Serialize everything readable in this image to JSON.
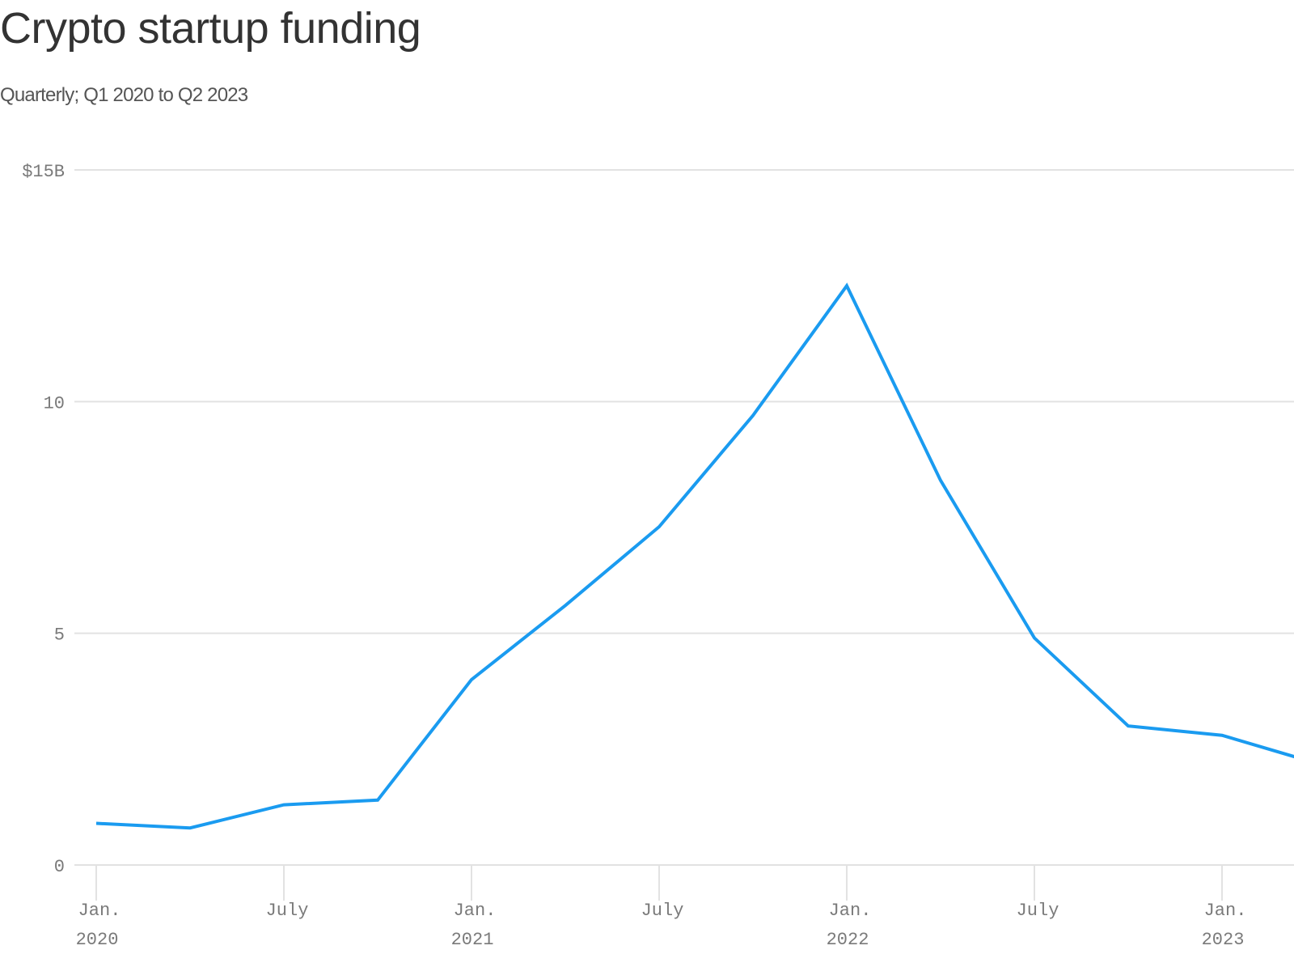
{
  "header": {
    "title": "Crypto startup funding",
    "subtitle": "Quarterly; Q1 2020 to Q2 2023"
  },
  "colors": {
    "line": "#1a9bf0",
    "grid": "#e2e2e2",
    "axis_text": "#7a7a7a",
    "title": "#333333",
    "subtitle": "#555555"
  },
  "chart_data": {
    "type": "line",
    "title": "Crypto startup funding",
    "subtitle": "Quarterly; Q1 2020 to Q2 2023",
    "xlabel": "",
    "ylabel": "",
    "ylim": [
      0,
      15
    ],
    "grid": true,
    "legend": null,
    "y_ticks": [
      {
        "value": 0,
        "label": "0"
      },
      {
        "value": 5,
        "label": "5"
      },
      {
        "value": 10,
        "label": "10"
      },
      {
        "value": 15,
        "label": "$15B"
      }
    ],
    "x_ticks": [
      {
        "index": 0,
        "line1": "Jan.",
        "line2": "2020"
      },
      {
        "index": 2,
        "line1": "July",
        "line2": ""
      },
      {
        "index": 4,
        "line1": "Jan.",
        "line2": "2021"
      },
      {
        "index": 6,
        "line1": "July",
        "line2": ""
      },
      {
        "index": 8,
        "line1": "Jan.",
        "line2": "2022"
      },
      {
        "index": 10,
        "line1": "July",
        "line2": ""
      },
      {
        "index": 12,
        "line1": "Jan.",
        "line2": "2023"
      }
    ],
    "categories": [
      "Q1 2020",
      "Q2 2020",
      "Q3 2020",
      "Q4 2020",
      "Q1 2021",
      "Q2 2021",
      "Q3 2021",
      "Q4 2021",
      "Q1 2022",
      "Q2 2022",
      "Q3 2022",
      "Q4 2022",
      "Q1 2023",
      "Q2 2023"
    ],
    "series": [
      {
        "name": "Crypto startup funding ($B)",
        "values": [
          0.9,
          0.8,
          1.3,
          1.4,
          4.0,
          5.6,
          7.3,
          9.7,
          12.5,
          8.3,
          4.9,
          3.0,
          2.8,
          2.2
        ]
      }
    ]
  }
}
